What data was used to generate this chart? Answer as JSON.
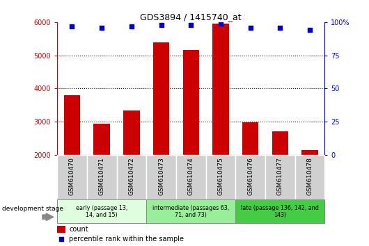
{
  "title": "GDS3894 / 1415740_at",
  "categories": [
    "GSM610470",
    "GSM610471",
    "GSM610472",
    "GSM610473",
    "GSM610474",
    "GSM610475",
    "GSM610476",
    "GSM610477",
    "GSM610478"
  ],
  "counts": [
    3800,
    2950,
    3350,
    5400,
    5150,
    5950,
    2980,
    2720,
    2150
  ],
  "percentile_ranks": [
    97,
    96,
    97,
    98,
    98,
    99,
    96,
    96,
    94
  ],
  "ylim_left": [
    2000,
    6000
  ],
  "ylim_right": [
    0,
    100
  ],
  "yticks_left": [
    2000,
    3000,
    4000,
    5000,
    6000
  ],
  "yticks_right": [
    0,
    25,
    50,
    75,
    100
  ],
  "bar_color": "#cc0000",
  "dot_color": "#0000cc",
  "groups": [
    {
      "label": "early (passage 13,\n14, and 15)",
      "start": 0,
      "end": 3,
      "color": "#ddffdd"
    },
    {
      "label": "intermediate (passages 63,\n71, and 73)",
      "start": 3,
      "end": 6,
      "color": "#99ee99"
    },
    {
      "label": "late (passage 136, 142, and\n143)",
      "start": 6,
      "end": 9,
      "color": "#44cc44"
    }
  ],
  "group_bg_color": "#d0d0d0",
  "legend_count_color": "#cc0000",
  "legend_pct_color": "#0000cc",
  "development_stage_label": "development stage",
  "pct_label": "100%",
  "ytick_right_labels": [
    "0",
    "25",
    "50",
    "75",
    "100%"
  ]
}
